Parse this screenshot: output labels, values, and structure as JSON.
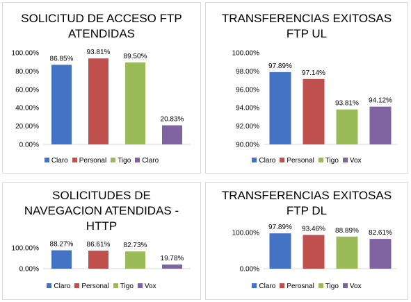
{
  "chart_data": [
    {
      "type": "bar",
      "title": [
        "SOLICITUD DE ACCESO FTP",
        "ATENDIDAS"
      ],
      "categories": [
        "Claro",
        "Personal",
        "Tigo",
        "Claro"
      ],
      "values": [
        86.85,
        93.81,
        89.5,
        20.83
      ],
      "value_labels": [
        "86.85%",
        "93.81%",
        "89.50%",
        "20.83%"
      ],
      "colors": [
        "#4472c4",
        "#c0504d",
        "#9bbb59",
        "#8064a2"
      ],
      "ylim": [
        0,
        100
      ],
      "yticks": [
        0,
        20,
        40,
        60,
        80,
        100
      ],
      "ytick_labels": [
        "0.00%",
        "20.00%",
        "40.00%",
        "60.00%",
        "80.00%",
        "100.00%"
      ],
      "grid": false,
      "legend": "bottom"
    },
    {
      "type": "bar",
      "title": [
        "TRANSFERENCIAS EXITOSAS",
        "FTP UL"
      ],
      "categories": [
        "Claro",
        "Personal",
        "Tigo",
        "Vox"
      ],
      "values": [
        97.89,
        97.14,
        93.81,
        94.12
      ],
      "value_labels": [
        "97.89%",
        "97.14%",
        "93.81%",
        "94.12%"
      ],
      "colors": [
        "#4472c4",
        "#c0504d",
        "#9bbb59",
        "#8064a2"
      ],
      "ylim": [
        90,
        100
      ],
      "yticks": [
        90,
        92,
        94,
        96,
        98,
        100
      ],
      "ytick_labels": [
        "90.00%",
        "92.00%",
        "94.00%",
        "96.00%",
        "98.00%",
        "100.00%"
      ],
      "grid": false,
      "legend": "bottom"
    },
    {
      "type": "bar",
      "title": [
        "SOLICITUDES DE",
        "NAVEGACION ATENDIDAS -",
        "HTTP"
      ],
      "categories": [
        "Claro",
        "Personal",
        "Tigo",
        "Vox"
      ],
      "values": [
        88.27,
        86.61,
        82.73,
        19.78
      ],
      "value_labels": [
        "88.27%",
        "86.61%",
        "82.73%",
        "19.78%"
      ],
      "colors": [
        "#4472c4",
        "#c0504d",
        "#9bbb59",
        "#8064a2"
      ],
      "ylim": [
        0,
        100
      ],
      "yticks": [
        0,
        100
      ],
      "ytick_labels": [
        "0.00%",
        "100.00%"
      ],
      "grid": false,
      "legend": "bottom"
    },
    {
      "type": "bar",
      "title": [
        "TRANSFERENCIAS EXITOSAS",
        "FTP DL"
      ],
      "categories": [
        "Claro",
        "Perosnal",
        "Tigo",
        "Vox"
      ],
      "values": [
        97.89,
        93.46,
        88.89,
        82.61
      ],
      "value_labels": [
        "97.89%",
        "93.46%",
        "88.89%",
        "82.61%"
      ],
      "colors": [
        "#4472c4",
        "#c0504d",
        "#9bbb59",
        "#8064a2"
      ],
      "ylim": [
        0,
        100
      ],
      "yticks": [
        0,
        100
      ],
      "ytick_labels": [
        "0.00%",
        "100.00%"
      ],
      "grid": false,
      "legend": "bottom"
    }
  ]
}
